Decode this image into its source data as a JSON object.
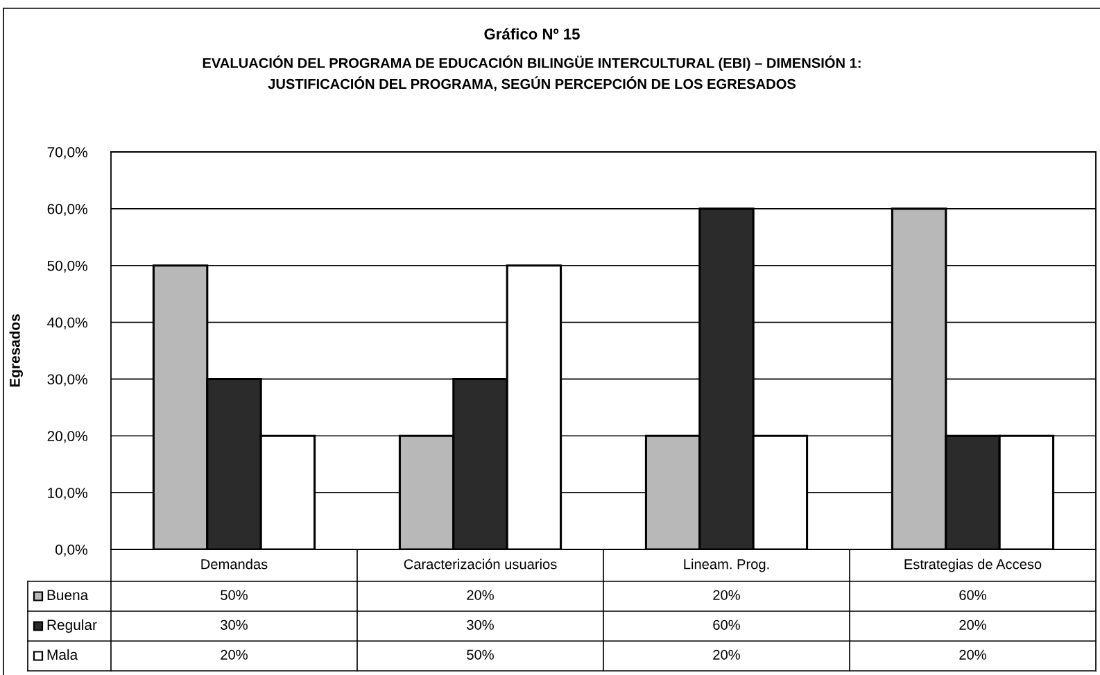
{
  "chart_data": {
    "type": "bar",
    "title": "Gráfico Nº 15",
    "subtitle": "EVALUACIÓN DEL PROGRAMA DE EDUCACIÓN BILINGÜE INTERCULTURAL (EBI) – DIMENSIÓN 1:\nJUSTIFICACIÓN DEL PROGRAMA, SEGÚN PERCEPCIÓN DE LOS EGRESADOS",
    "ylabel": "Egresados",
    "categories": [
      "Demandas",
      "Caracterización usuarios",
      "Lineam. Prog.",
      "Estrategias de Acceso"
    ],
    "series": [
      {
        "name": "Buena",
        "color": "#b8b8b8",
        "values": [
          50,
          20,
          20,
          60
        ],
        "value_labels": [
          "50%",
          "20%",
          "20%",
          "60%"
        ]
      },
      {
        "name": "Regular",
        "color": "#2b2b2b",
        "values": [
          30,
          30,
          60,
          20
        ],
        "value_labels": [
          "30%",
          "30%",
          "60%",
          "20%"
        ]
      },
      {
        "name": "Mala",
        "color": "#ffffff",
        "values": [
          20,
          50,
          20,
          20
        ],
        "value_labels": [
          "20%",
          "50%",
          "20%",
          "20%"
        ]
      }
    ],
    "ylim": [
      0,
      70
    ],
    "yticks": [
      {
        "value": 0,
        "label": "0,0%"
      },
      {
        "value": 10,
        "label": "10,0%"
      },
      {
        "value": 20,
        "label": "20,0%"
      },
      {
        "value": 30,
        "label": "30,0%"
      },
      {
        "value": 40,
        "label": "40,0%"
      },
      {
        "value": 50,
        "label": "50,0%"
      },
      {
        "value": 60,
        "label": "60,0%"
      },
      {
        "value": 70,
        "label": "70,0%"
      }
    ],
    "grid": "y",
    "legend": "bottom"
  }
}
